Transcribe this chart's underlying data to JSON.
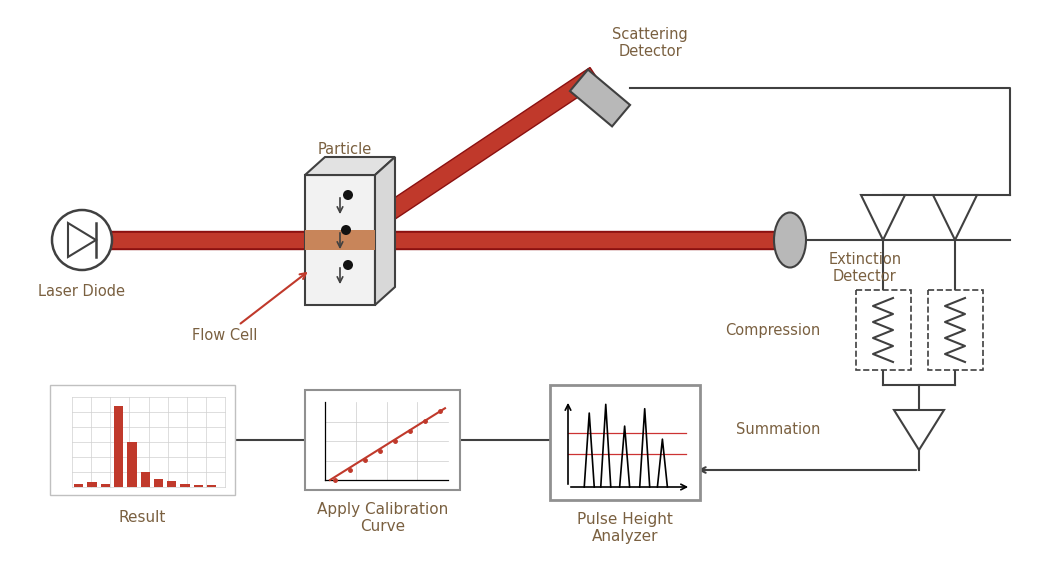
{
  "bg_color": "#ffffff",
  "text_color": "#7a6040",
  "line_color": "#404040",
  "red_color": "#c0392b",
  "dark_red": "#8b1010",
  "gray_det": "#b8b8b8",
  "figsize": [
    10.37,
    5.75
  ],
  "dpi": 100,
  "labels": {
    "laser_diode": "Laser Diode",
    "particle": "Particle",
    "flow_cell": "Flow Cell",
    "scattering": "Scattering\nDetector",
    "extinction": "Extinction\nDetector",
    "compression": "Compression",
    "summation": "Summation",
    "result": "Result",
    "calibration": "Apply Calibration\nCurve",
    "pulse": "Pulse Height\nAnalyzer"
  }
}
